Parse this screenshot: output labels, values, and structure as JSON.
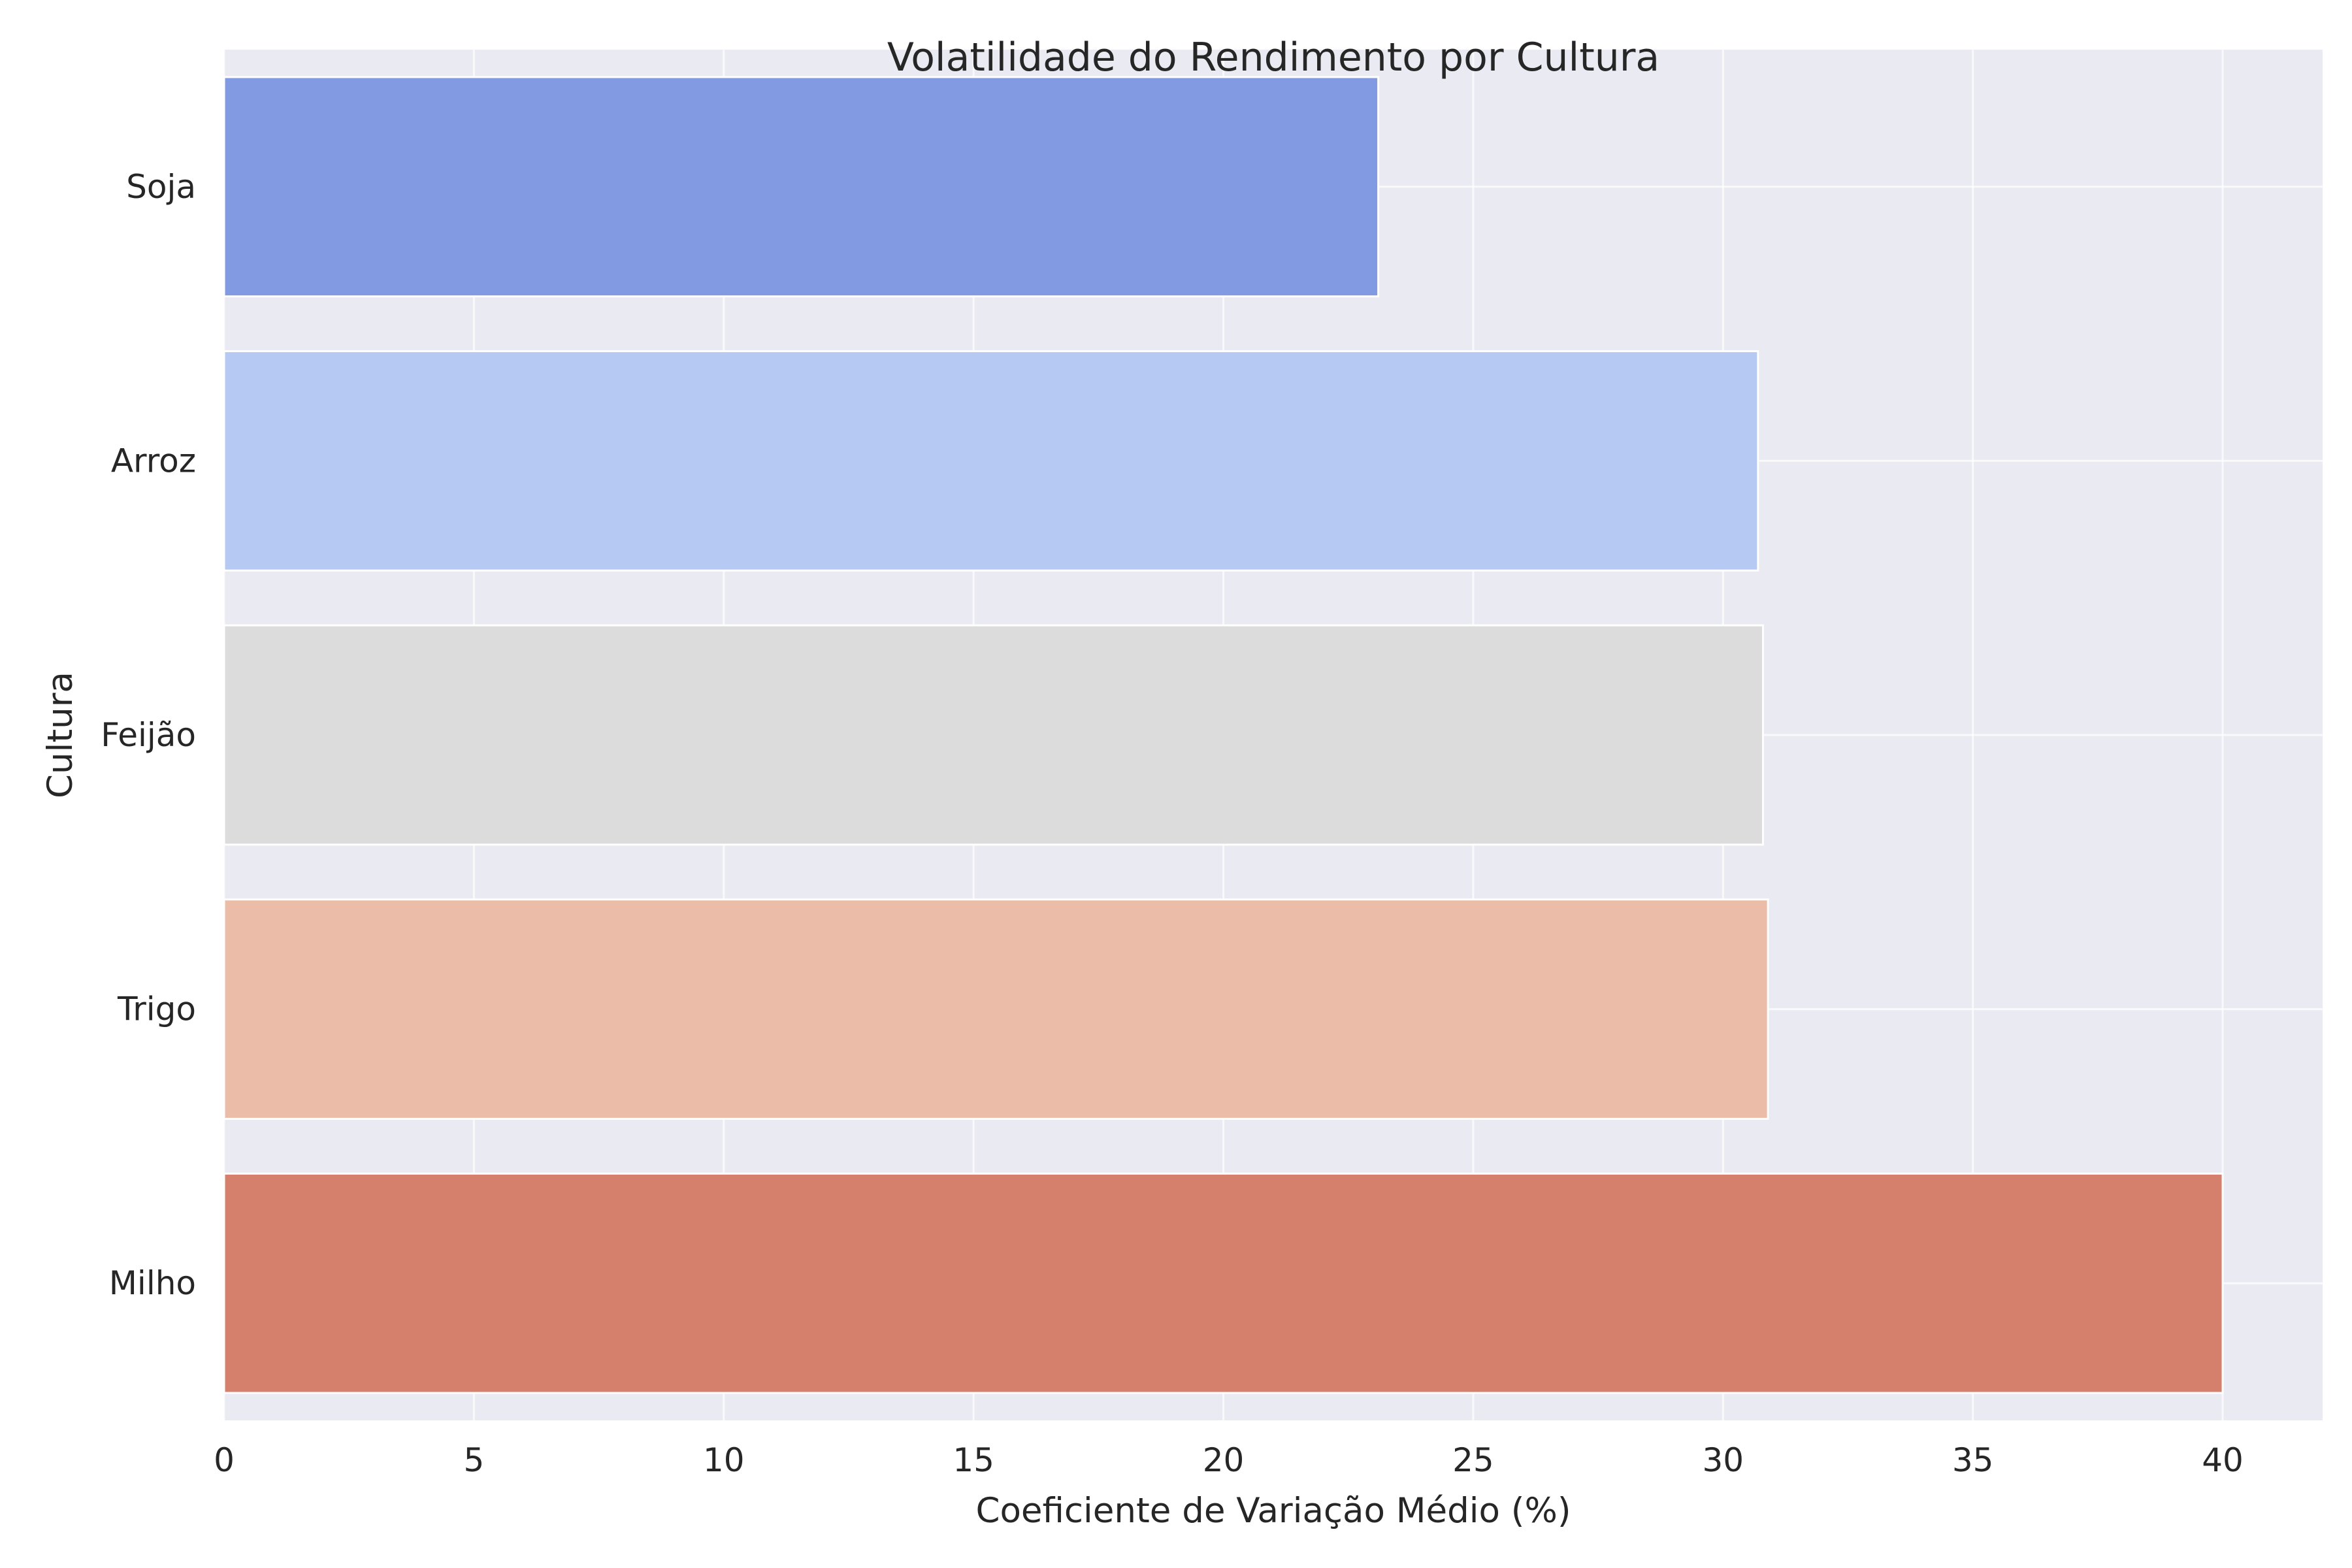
{
  "chart_data": {
    "type": "bar",
    "orientation": "horizontal",
    "title": "Volatilidade do Rendimento por Cultura",
    "xlabel": "Coeficiente de Variação Médio (%)",
    "ylabel": "Cultura",
    "categories": [
      "Soja",
      "Arroz",
      "Feijão",
      "Trigo",
      "Milho"
    ],
    "values": [
      23.1,
      30.7,
      30.8,
      30.9,
      40.0
    ],
    "colors": [
      "#819ae2",
      "#b5c9f2",
      "#dcdcdc",
      "#ebbca7",
      "#d57f6d"
    ],
    "xlim": [
      0,
      42
    ],
    "xticks": [
      0,
      5,
      10,
      15,
      20,
      25,
      30,
      35,
      40
    ],
    "grid": true,
    "background": "#eaeaf2"
  }
}
